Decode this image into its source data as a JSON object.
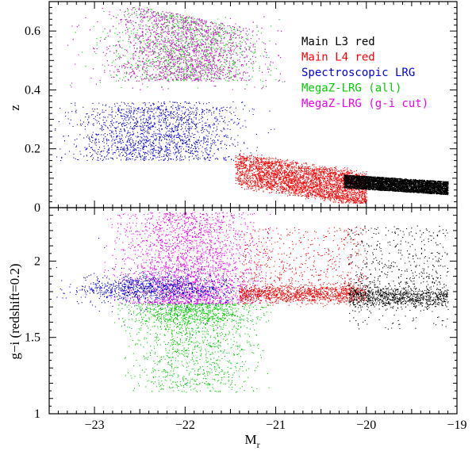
{
  "chart_data": [
    {
      "type": "scatter",
      "panel": "top",
      "ylabel": "z",
      "xlim": [
        -23.5,
        -19
      ],
      "ylim": [
        0,
        0.7
      ],
      "xticks": [
        -23,
        -22,
        -21,
        -20,
        -19
      ],
      "yticks": [
        0,
        0.2,
        0.4,
        0.6
      ],
      "ytick_labels": [
        "0",
        "0.2",
        "0.4",
        "0.6"
      ],
      "legend_position": "top-right",
      "legend": [
        {
          "label": "Main L3 red",
          "color": "#000000"
        },
        {
          "label": "Main L4 red",
          "color": "#ff0000"
        },
        {
          "label": "Spectroscopic LRG",
          "color": "#0000dd"
        },
        {
          "label": "MegaZ-LRG (all)",
          "color": "#00cc00"
        },
        {
          "label": "MegaZ-LRG (g-i cut)",
          "color": "#ee00ee"
        }
      ],
      "series": [
        {
          "name": "MegaZ-LRG (all)",
          "color": "#00cc00",
          "count": 3500,
          "mr_range": [
            -22.9,
            -21.1
          ],
          "z_range": [
            0.44,
            0.68
          ],
          "z_trend": "upper edge rises toward brighter Mr"
        },
        {
          "name": "MegaZ-LRG (g-i cut)",
          "color": "#ee00ee",
          "count": 3200,
          "mr_range": [
            -22.9,
            -21.3
          ],
          "z_range": [
            0.44,
            0.68
          ]
        },
        {
          "name": "Spectroscopic LRG",
          "color": "#0000dd",
          "count": 5500,
          "mr_range": [
            -23.4,
            -21.3
          ],
          "z_range": [
            0.16,
            0.34
          ]
        },
        {
          "name": "Main L4 red",
          "color": "#ff0000",
          "count": 6500,
          "mr_range": [
            -21.4,
            -20.0
          ],
          "z_range": [
            0.02,
            0.17
          ],
          "z_trend": "decreasing with fainter Mr"
        },
        {
          "name": "Main L3 red",
          "color": "#000000",
          "count": 6500,
          "mr_range": [
            -20.2,
            -19.1
          ],
          "z_range": [
            0.04,
            0.11
          ],
          "z_trend": "decreasing with fainter Mr"
        }
      ]
    },
    {
      "type": "scatter",
      "panel": "bottom",
      "xlabel": "M",
      "xlabel_sub": "r",
      "ylabel": "g−i (redshift=0.2)",
      "xlim": [
        -23.5,
        -19
      ],
      "ylim": [
        1,
        2.35
      ],
      "xticks": [
        -23,
        -22,
        -21,
        -20,
        -19
      ],
      "xtick_labels": [
        "−23",
        "−22",
        "−21",
        "−20",
        "−19"
      ],
      "yticks": [
        1,
        1.5,
        2
      ],
      "ytick_labels": [
        "1",
        "1.5",
        "2"
      ],
      "series": [
        {
          "name": "MegaZ-LRG (all)",
          "color": "#00cc00",
          "count": 3000,
          "mr_range": [
            -22.7,
            -21.1
          ],
          "gi_range": [
            1.15,
            1.72
          ]
        },
        {
          "name": "MegaZ-LRG (g-i cut)",
          "color": "#ee00ee",
          "count": 3600,
          "mr_range": [
            -22.8,
            -21.1
          ],
          "gi_range": [
            1.72,
            2.32
          ]
        },
        {
          "name": "Spectroscopic LRG",
          "color": "#0000dd",
          "count": 5500,
          "mr_range": [
            -23.5,
            -21.3
          ],
          "gi_center": 1.82
        },
        {
          "name": "Main L4 red",
          "color": "#ff0000",
          "count": 6000,
          "mr_range": [
            -21.4,
            -20.0
          ],
          "gi_center": 1.78
        },
        {
          "name": "Main L3 red",
          "color": "#000000",
          "count": 6000,
          "mr_range": [
            -20.2,
            -19.1
          ],
          "gi_center": 1.76
        }
      ]
    }
  ]
}
